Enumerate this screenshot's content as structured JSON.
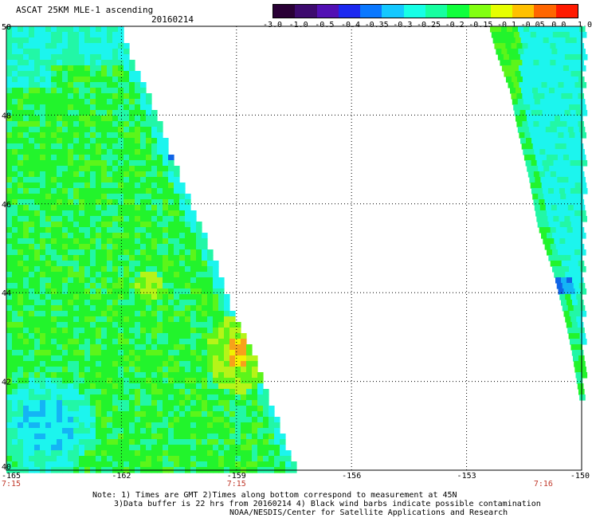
{
  "header": {
    "title": "ASCAT 25KM MLE-1 ascending",
    "date": "20160214"
  },
  "colorbar": {
    "labels": [
      "-3.0",
      "-1.0",
      "-0.5",
      "-0.4",
      "-0.35",
      "-0.3",
      "-0.25",
      "-0.2",
      "-0.15",
      "-0.1",
      "-0.05",
      "0.0",
      "1.0"
    ],
    "colors": [
      "#2a0036",
      "#3d0a6e",
      "#5210b4",
      "#1c28f0",
      "#0a78ff",
      "#14c8ff",
      "#16ffe6",
      "#16ffa0",
      "#10ff3c",
      "#82ff10",
      "#e6ff00",
      "#ffc000",
      "#ff6600",
      "#ff1a00"
    ]
  },
  "map": {
    "lon_labels": [
      "-165",
      "-162",
      "-159",
      "-156",
      "-153",
      "-150"
    ],
    "lat_labels": [
      "40",
      "42",
      "44",
      "46",
      "48",
      "50"
    ],
    "time_labels": [
      {
        "text": "7:15",
        "lon": -165
      },
      {
        "text": "7:15",
        "lon": -159
      },
      {
        "text": "7:16",
        "lon": -151
      }
    ],
    "time_color": "#c0392b",
    "field_colors": {
      "cyan": "#1cf5ee",
      "aqua_green": "#22f7a6",
      "green": "#22f42c",
      "light_green": "#5cf51a",
      "yellow_green": "#b6f418",
      "yellow": "#f2f200",
      "orange": "#f7a21a",
      "blue": "#1064e6",
      "sky": "#14b4f5"
    }
  },
  "footer": {
    "line1": "Note: 1) Times are GMT 2)Times along bottom correspond to measurement at 45N",
    "line2": "3)Data buffer is 22 hrs from 20160214 4) Black wind barbs indicate possible contamination",
    "line3": "NOAA/NESDIS/Center for Satellite Applications and Research"
  }
}
